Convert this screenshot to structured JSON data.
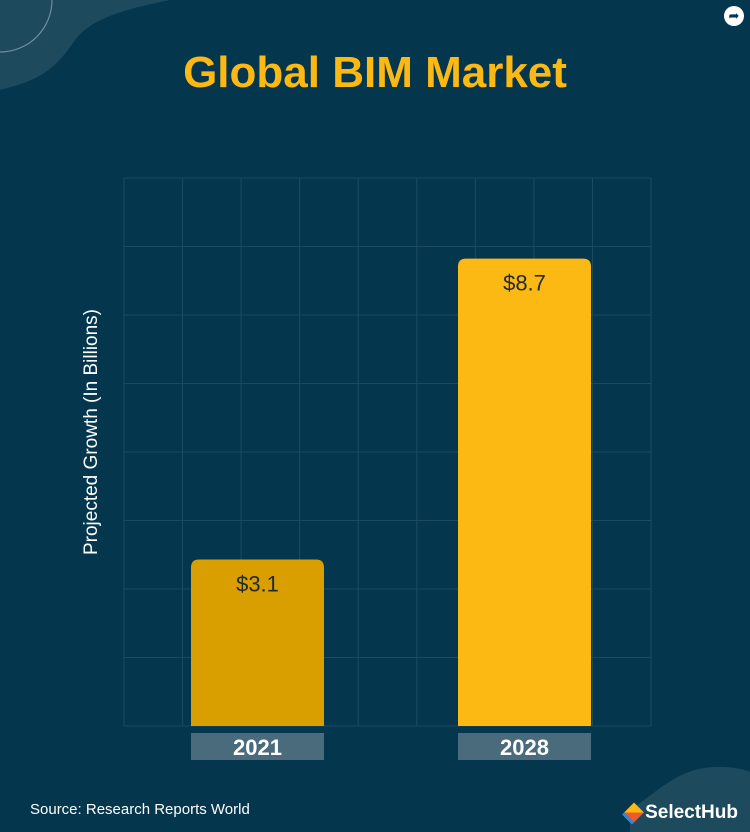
{
  "chart_data": {
    "type": "bar",
    "title": "Global BIM Market",
    "ylabel": "Projected Growth (In Billions)",
    "xlabel": "",
    "categories": [
      "2021",
      "2028"
    ],
    "values": [
      3.1,
      8.7
    ],
    "data_labels": [
      "$3.1",
      "$8.7"
    ],
    "bar_colors": [
      "#d99e00",
      "#fdb913"
    ],
    "ylim": [
      0,
      10.2
    ],
    "grid": true
  },
  "source": "Source: Research Reports World",
  "brand": "SelectHub",
  "icons": {
    "share": "share-icon",
    "logo": "selecthub-cube-icon"
  },
  "colors": {
    "background": "#04364d",
    "accent": "#fdb913",
    "tick_box": "#4a6b7b"
  }
}
